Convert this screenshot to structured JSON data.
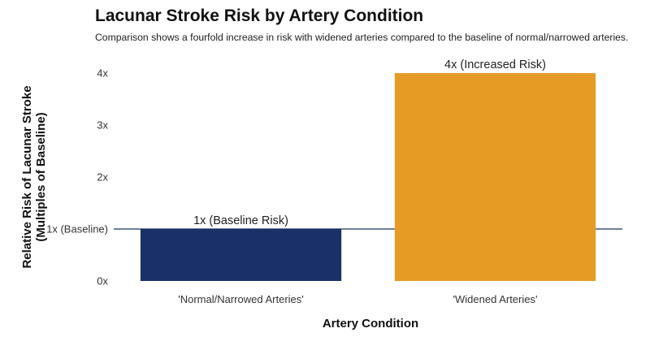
{
  "chart_data": {
    "type": "bar",
    "title": "Lacunar Stroke Risk by Artery Condition",
    "subtitle": "Comparison shows a fourfold increase in risk with widened arteries compared to the baseline of normal/narrowed arteries.",
    "xlabel": "Artery Condition",
    "ylabel_line1": "Relative Risk of Lacunar Stroke",
    "ylabel_line2": "(Multiples of Baseline)",
    "categories": [
      "'Normal/Narrowed Arteries'",
      "'Widened Arteries'"
    ],
    "values": [
      1,
      4
    ],
    "bar_labels": [
      "1x (Baseline Risk)",
      "4x (Increased Risk)"
    ],
    "bar_colors": [
      "#1a3068",
      "#e69c24"
    ],
    "ylim": [
      0,
      4
    ],
    "yticks": [
      {
        "value": 0,
        "label": "0x"
      },
      {
        "value": 1,
        "label": "1x (Baseline)"
      },
      {
        "value": 2,
        "label": "2x"
      },
      {
        "value": 3,
        "label": "3x"
      },
      {
        "value": 4,
        "label": "4x"
      }
    ],
    "reference_line": {
      "value": 1,
      "color": "#1a3068"
    },
    "grid": false,
    "legend": "none"
  }
}
